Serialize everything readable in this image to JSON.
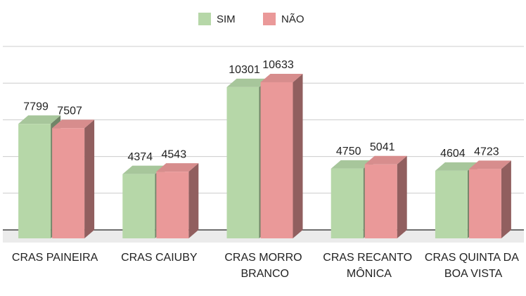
{
  "chart_data": {
    "type": "bar3d",
    "categories": [
      "CRAS PAINEIRA",
      "CRAS CAIUBY",
      "CRAS MORRO BRANCO",
      "CRAS RECANTO MÔNICA",
      "CRAS QUINTA DA BOA VISTA"
    ],
    "series": [
      {
        "name": "SIM",
        "color": "#b6d7a8",
        "values": [
          7799,
          4374,
          10301,
          4750,
          4604
        ]
      },
      {
        "name": "NÃO",
        "color": "#ea9999",
        "values": [
          7507,
          4543,
          10633,
          5041,
          4723
        ]
      }
    ],
    "ylim": [
      0,
      12500
    ],
    "yticks": [
      0,
      2500,
      5000,
      7500,
      10000,
      12500
    ],
    "grid": true,
    "legend": "top"
  }
}
